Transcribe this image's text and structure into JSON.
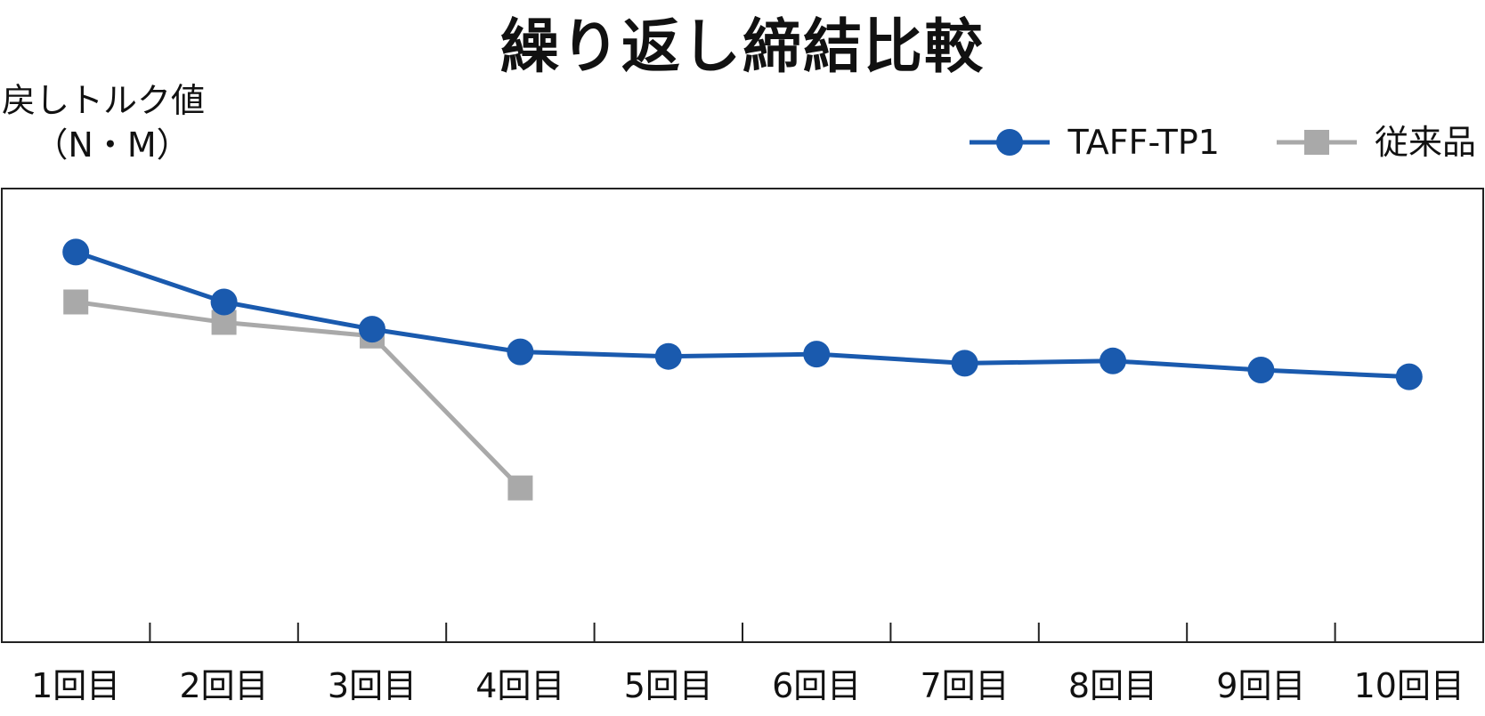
{
  "chart_data": {
    "type": "line",
    "title": "繰り返し締結比較",
    "ylabel": "戻しトルク値",
    "yunit": "（N・M）",
    "xlabel": "",
    "categories": [
      "1回目",
      "2回目",
      "3回目",
      "4回目",
      "5回目",
      "6回目",
      "7回目",
      "8回目",
      "9回目",
      "10回目"
    ],
    "ylim": [
      0,
      100
    ],
    "grid": false,
    "legend_position": "top-right",
    "series": [
      {
        "name": "TAFF-TP1",
        "color": "#1a5aae",
        "marker": "circle",
        "values": [
          86,
          75,
          69,
          64,
          63,
          63.5,
          61.5,
          62,
          60,
          58.5
        ]
      },
      {
        "name": "従来品",
        "color": "#a9a9a9",
        "marker": "square",
        "values": [
          75,
          70.5,
          67.5,
          34,
          null,
          null,
          null,
          null,
          null,
          null
        ]
      }
    ]
  }
}
